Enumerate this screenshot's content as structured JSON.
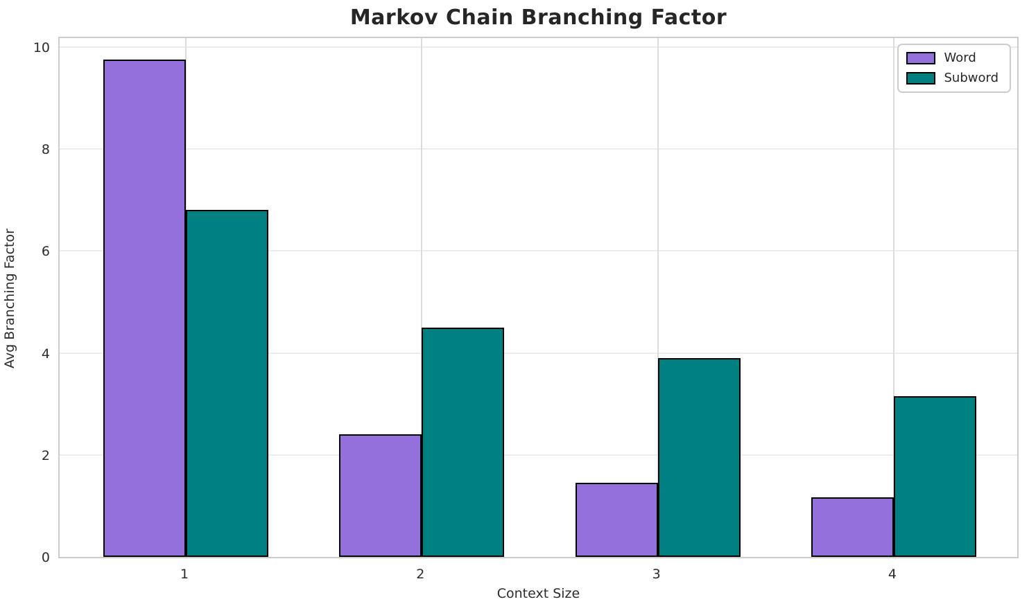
{
  "title": "Markov Chain Branching Factor",
  "chart_data": {
    "type": "bar",
    "title": "Markov Chain Branching Factor",
    "xlabel": "Context Size",
    "ylabel": "Avg Branching Factor",
    "categories": [
      "1",
      "2",
      "3",
      "4"
    ],
    "category_positions": [
      1,
      2,
      3,
      4
    ],
    "series": [
      {
        "name": "Word",
        "color": "#9370DB",
        "values": [
          9.75,
          2.4,
          1.45,
          1.17
        ]
      },
      {
        "name": "Subword",
        "color": "#008080",
        "values": [
          6.8,
          4.5,
          3.9,
          3.15
        ]
      }
    ],
    "bar_width": 0.35,
    "bar_edge_color": "#000000",
    "xlim": [
      0.465,
      4.535
    ],
    "ylim": [
      0,
      10.23
    ],
    "yticks": [
      0,
      2,
      4,
      6,
      8,
      10
    ],
    "grid": true,
    "legend_position": "upper right"
  },
  "legend": {
    "word_label": "Word",
    "subword_label": "Subword"
  }
}
